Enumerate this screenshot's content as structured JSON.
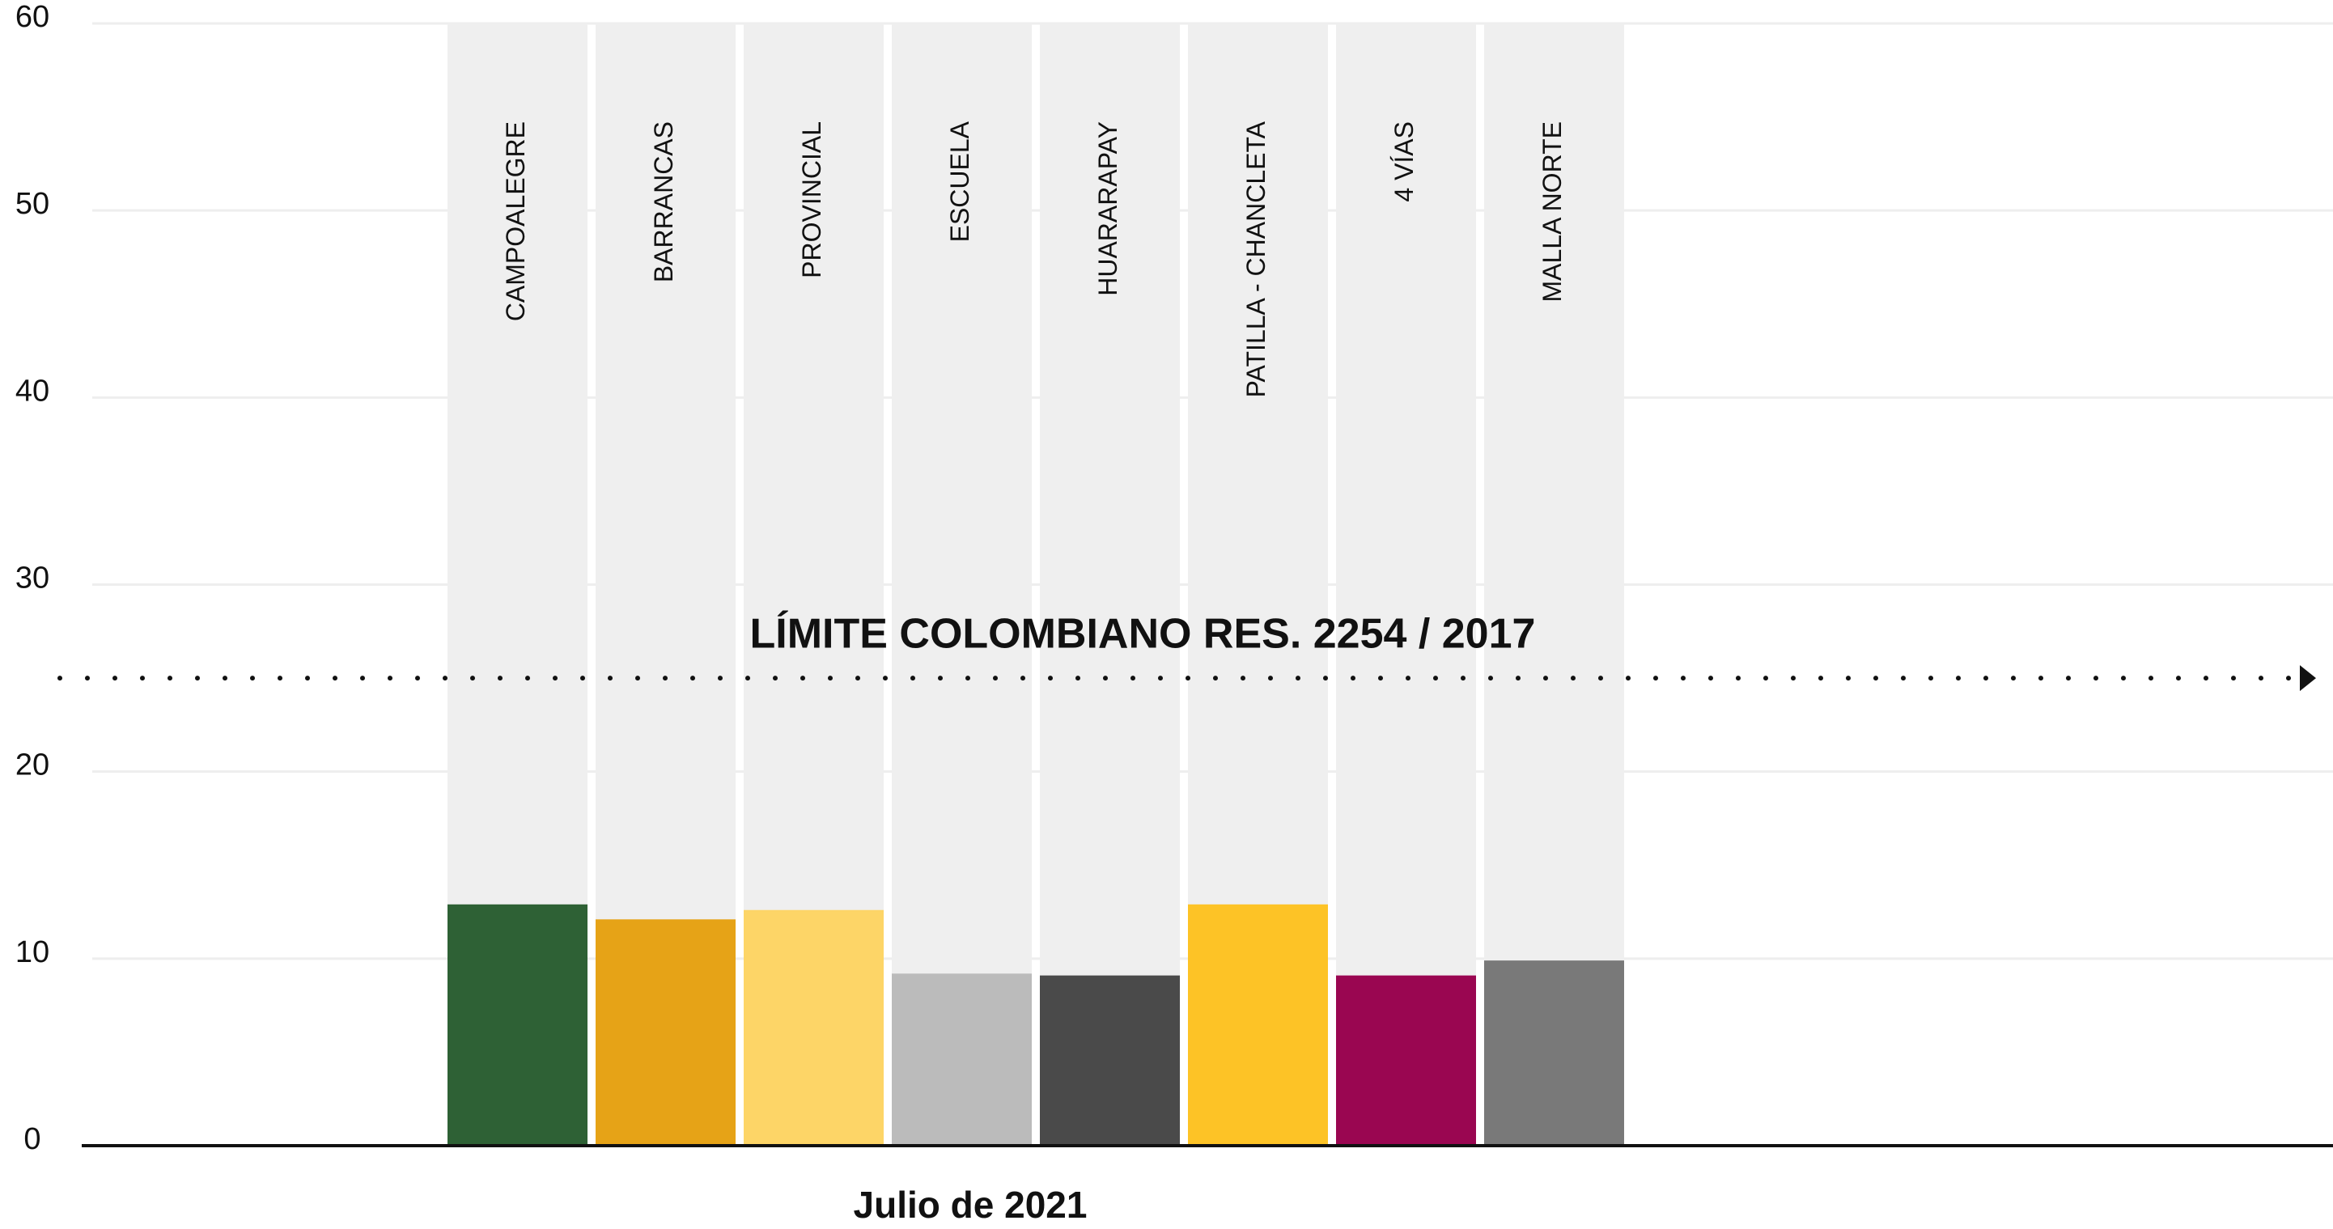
{
  "chart_data": {
    "type": "bar",
    "categories": [
      "CAMPOALEGRE",
      "BARRANCAS",
      "PROVINCIAL",
      "ESCUELA",
      "HUARARAPAY",
      "PATILLA - CHANCLETA",
      "4 VÍAS",
      "MALLA NORTE"
    ],
    "values": [
      12.9,
      12.1,
      12.6,
      9.2,
      9.1,
      12.9,
      9.1,
      9.9
    ],
    "colors": [
      "#2e6135",
      "#e6a317",
      "#fdd567",
      "#bbbbbb",
      "#4a4a4a",
      "#fdc326",
      "#9a0651",
      "#797979"
    ],
    "background_bar_color": "#efefef",
    "ylim": [
      0,
      60
    ],
    "yticks": [
      0,
      10,
      20,
      30,
      40,
      50,
      60
    ],
    "grid": true,
    "x_label": "Julio de 2021",
    "reference_line": {
      "value": 25,
      "label": "LÍMITE COLOMBIANO RES. 2254 / 2017"
    }
  }
}
